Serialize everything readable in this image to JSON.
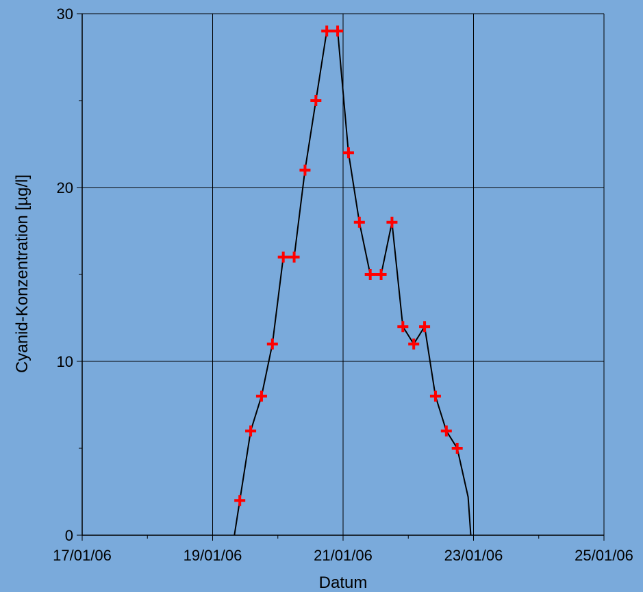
{
  "chart_data": {
    "type": "line",
    "title": "",
    "xlabel": "Datum",
    "ylabel": "Cyanid-Konzentration    [µg/l]",
    "x_is_date": true,
    "xlim": [
      "2006-01-17",
      "2006-01-25"
    ],
    "ylim": [
      0,
      30
    ],
    "xticks": [
      "17/01/06",
      "19/01/06",
      "21/01/06",
      "23/01/06",
      "25/01/06"
    ],
    "yticks": [
      "0",
      "10",
      "20",
      "30"
    ],
    "grid": true,
    "legend": "none",
    "colors": {
      "background": "#7aaadb",
      "line": "#000000",
      "marker": "#ff0000"
    },
    "series": [
      {
        "line_points": [
          [
            "2006-01-19 08:00",
            0
          ],
          [
            "2006-01-19 10:00",
            2
          ],
          [
            "2006-01-19 14:00",
            6
          ],
          [
            "2006-01-19 18:00",
            8
          ],
          [
            "2006-01-19 22:00",
            11
          ],
          [
            "2006-01-20 02:00",
            16
          ],
          [
            "2006-01-20 06:00",
            16
          ],
          [
            "2006-01-20 10:00",
            21
          ],
          [
            "2006-01-20 14:00",
            25
          ],
          [
            "2006-01-20 18:00",
            29
          ],
          [
            "2006-01-20 22:00",
            29
          ],
          [
            "2006-01-21 02:00",
            22
          ],
          [
            "2006-01-21 06:00",
            18
          ],
          [
            "2006-01-21 10:00",
            15
          ],
          [
            "2006-01-21 14:00",
            15
          ],
          [
            "2006-01-21 18:00",
            18
          ],
          [
            "2006-01-21 22:00",
            12
          ],
          [
            "2006-01-22 02:00",
            11
          ],
          [
            "2006-01-22 06:00",
            12
          ],
          [
            "2006-01-22 10:00",
            8
          ],
          [
            "2006-01-22 14:00",
            6
          ],
          [
            "2006-01-22 18:00",
            5
          ],
          [
            "2006-01-22 22:00",
            2.2
          ],
          [
            "2006-01-22 23:00",
            0
          ]
        ],
        "markers": [
          [
            "2006-01-19 10:00",
            2
          ],
          [
            "2006-01-19 14:00",
            6
          ],
          [
            "2006-01-19 18:00",
            8
          ],
          [
            "2006-01-19 22:00",
            11
          ],
          [
            "2006-01-20 02:00",
            16
          ],
          [
            "2006-01-20 06:00",
            16
          ],
          [
            "2006-01-20 10:00",
            21
          ],
          [
            "2006-01-20 14:00",
            25
          ],
          [
            "2006-01-20 18:00",
            29
          ],
          [
            "2006-01-20 22:00",
            29
          ],
          [
            "2006-01-21 02:00",
            22
          ],
          [
            "2006-01-21 06:00",
            18
          ],
          [
            "2006-01-21 10:00",
            15
          ],
          [
            "2006-01-21 14:00",
            15
          ],
          [
            "2006-01-21 18:00",
            18
          ],
          [
            "2006-01-21 22:00",
            12
          ],
          [
            "2006-01-22 02:00",
            11
          ],
          [
            "2006-01-22 06:00",
            12
          ],
          [
            "2006-01-22 10:00",
            8
          ],
          [
            "2006-01-22 14:00",
            6
          ],
          [
            "2006-01-22 18:00",
            5
          ]
        ]
      }
    ]
  }
}
